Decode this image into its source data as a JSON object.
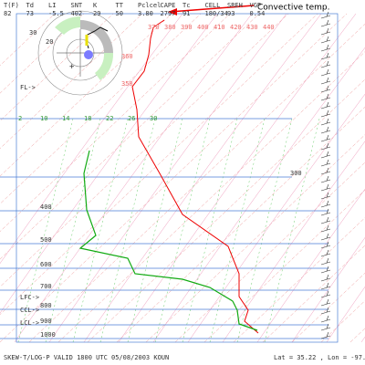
{
  "header": {
    "labels": [
      "T(F)",
      "Td",
      "LI",
      "SNT",
      "K",
      "TT",
      "Pclcel",
      "CAPE",
      "Tc",
      "CELL",
      "SREH",
      "VGP"
    ],
    "values": [
      "82",
      "73",
      "-5.5",
      "402",
      "29",
      "50",
      "3.80",
      "2797",
      "91",
      "180/34",
      "93",
      "0.54"
    ]
  },
  "annotation": "Convective temp.",
  "theta_labels": [
    "370",
    "380",
    "390",
    "400",
    "410",
    "420",
    "430",
    "440"
  ],
  "theta_left": [
    "360",
    "350"
  ],
  "mixing_labels": [
    "2",
    "10",
    "14",
    "18",
    "22",
    "26",
    "30"
  ],
  "pressure_labels": [
    "300",
    "400",
    "500",
    "600",
    "700",
    "800",
    "900",
    "1000"
  ],
  "levels": [
    "LFC->",
    "CCL->",
    "LCL->"
  ],
  "hodo_labels": [
    "30",
    "20",
    "FL->"
  ],
  "footer": {
    "left": "SKEW-T/LOG-P VALID 1800 UTC 05/08/2003  KOUN",
    "right": "Lat =   35.22 , Lon =   -97.45"
  }
}
